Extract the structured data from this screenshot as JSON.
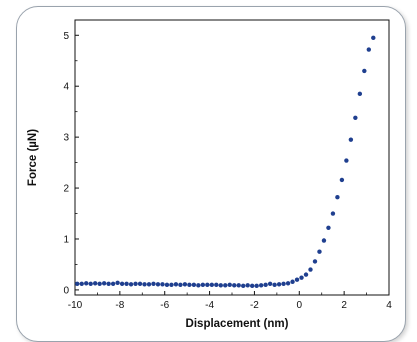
{
  "chart_data": {
    "type": "scatter",
    "title": "",
    "xlabel": "Displacement (nm)",
    "ylabel": "Force (µN)",
    "xlim": [
      -10,
      4
    ],
    "ylim": [
      -0.1,
      5.3
    ],
    "x_ticks": [
      -10,
      -8,
      -6,
      -4,
      -2,
      0,
      2,
      4
    ],
    "y_ticks": [
      0,
      1,
      2,
      3,
      4,
      5
    ],
    "grid": false,
    "legend": "none",
    "series": [
      {
        "color": "#1f3f8f",
        "points": [
          [
            -9.9,
            0.12
          ],
          [
            -9.7,
            0.12
          ],
          [
            -9.5,
            0.13
          ],
          [
            -9.3,
            0.12
          ],
          [
            -9.1,
            0.13
          ],
          [
            -8.9,
            0.12
          ],
          [
            -8.7,
            0.13
          ],
          [
            -8.5,
            0.12
          ],
          [
            -8.3,
            0.12
          ],
          [
            -8.1,
            0.14
          ],
          [
            -7.9,
            0.12
          ],
          [
            -7.7,
            0.12
          ],
          [
            -7.5,
            0.11
          ],
          [
            -7.3,
            0.12
          ],
          [
            -7.1,
            0.12
          ],
          [
            -6.9,
            0.11
          ],
          [
            -6.7,
            0.11
          ],
          [
            -6.5,
            0.12
          ],
          [
            -6.3,
            0.11
          ],
          [
            -6.1,
            0.11
          ],
          [
            -5.9,
            0.1
          ],
          [
            -5.7,
            0.1
          ],
          [
            -5.5,
            0.11
          ],
          [
            -5.3,
            0.1
          ],
          [
            -5.1,
            0.11
          ],
          [
            -4.9,
            0.1
          ],
          [
            -4.7,
            0.1
          ],
          [
            -4.5,
            0.09
          ],
          [
            -4.3,
            0.1
          ],
          [
            -4.1,
            0.1
          ],
          [
            -3.9,
            0.1
          ],
          [
            -3.7,
            0.1
          ],
          [
            -3.5,
            0.09
          ],
          [
            -3.3,
            0.09
          ],
          [
            -3.1,
            0.1
          ],
          [
            -2.9,
            0.09
          ],
          [
            -2.7,
            0.09
          ],
          [
            -2.5,
            0.08
          ],
          [
            -2.3,
            0.09
          ],
          [
            -2.1,
            0.08
          ],
          [
            -1.9,
            0.08
          ],
          [
            -1.7,
            0.09
          ],
          [
            -1.5,
            0.1
          ],
          [
            -1.3,
            0.12
          ],
          [
            -1.1,
            0.1
          ],
          [
            -0.9,
            0.11
          ],
          [
            -0.7,
            0.12
          ],
          [
            -0.5,
            0.13
          ],
          [
            -0.3,
            0.16
          ],
          [
            -0.1,
            0.2
          ],
          [
            0.1,
            0.24
          ],
          [
            0.3,
            0.3
          ],
          [
            0.5,
            0.4
          ],
          [
            0.7,
            0.56
          ],
          [
            0.9,
            0.75
          ],
          [
            1.1,
            0.97
          ],
          [
            1.3,
            1.22
          ],
          [
            1.5,
            1.5
          ],
          [
            1.7,
            1.82
          ],
          [
            1.9,
            2.16
          ],
          [
            2.1,
            2.54
          ],
          [
            2.3,
            2.95
          ],
          [
            2.5,
            3.38
          ],
          [
            2.7,
            3.85
          ],
          [
            2.9,
            4.3
          ],
          [
            3.1,
            4.72
          ],
          [
            3.3,
            4.95
          ]
        ]
      }
    ]
  }
}
